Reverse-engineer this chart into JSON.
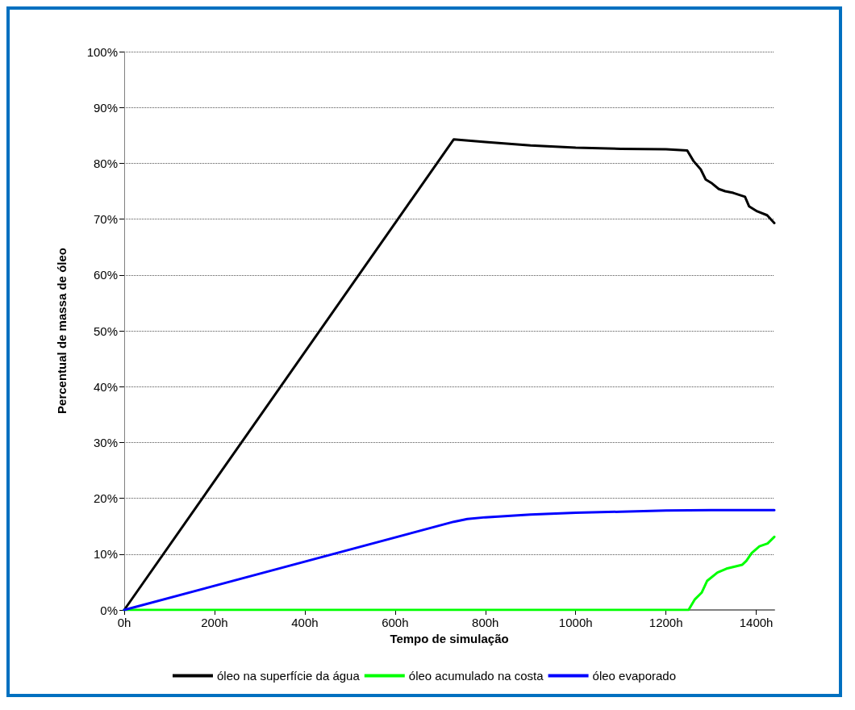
{
  "chart_data": {
    "type": "line",
    "xlabel": "Tempo de simulação",
    "ylabel": "Percentual de massa de óleo",
    "xlim": [
      0,
      1440
    ],
    "xticks": [
      {
        "value": 0,
        "label": "0h"
      },
      {
        "value": 200,
        "label": "200h"
      },
      {
        "value": 400,
        "label": "400h"
      },
      {
        "value": 600,
        "label": "600h"
      },
      {
        "value": 800,
        "label": "800h"
      },
      {
        "value": 1000,
        "label": "1000h"
      },
      {
        "value": 1200,
        "label": "1200h"
      },
      {
        "value": 1400,
        "label": "1400h"
      }
    ],
    "ylim": [
      0,
      100
    ],
    "yticks": [
      {
        "value": 0,
        "label": "0%"
      },
      {
        "value": 10,
        "label": "10%"
      },
      {
        "value": 20,
        "label": "20%"
      },
      {
        "value": 30,
        "label": "30%"
      },
      {
        "value": 40,
        "label": "40%"
      },
      {
        "value": 50,
        "label": "50%"
      },
      {
        "value": 60,
        "label": "60%"
      },
      {
        "value": 70,
        "label": "70%"
      },
      {
        "value": 80,
        "label": "80%"
      },
      {
        "value": 90,
        "label": "90%"
      },
      {
        "value": 100,
        "label": "100%"
      }
    ],
    "grid": "y",
    "legend": "bottom",
    "marker": "none",
    "line_style": "solid",
    "series": [
      {
        "name": "óleo na superfície da água",
        "color": "#000000",
        "x": [
          0,
          730,
          800,
          900,
          1000,
          1100,
          1200,
          1247,
          1261,
          1277,
          1288,
          1302,
          1317,
          1331,
          1349,
          1375,
          1384,
          1402,
          1424,
          1440
        ],
        "values": [
          0,
          84.3,
          83.8,
          83.2,
          82.8,
          82.6,
          82.5,
          82.3,
          80.4,
          78.9,
          77.1,
          76.4,
          75.4,
          75.0,
          74.7,
          74.0,
          72.3,
          71.4,
          70.7,
          69.3
        ]
      },
      {
        "name": "óleo acumulado na costa",
        "color": "#00ff00",
        "x": [
          0,
          1250,
          1264,
          1279,
          1291,
          1314,
          1334,
          1369,
          1378,
          1390,
          1407,
          1425,
          1440
        ],
        "values": [
          0,
          0,
          1.9,
          3.1,
          5.2,
          6.7,
          7.4,
          8.1,
          8.8,
          10.2,
          11.4,
          11.9,
          13.1
        ]
      },
      {
        "name": "óleo evaporado",
        "color": "#0000ff",
        "x": [
          0,
          730,
          760,
          800,
          900,
          1000,
          1100,
          1200,
          1300,
          1440
        ],
        "values": [
          0,
          15.8,
          16.3,
          16.6,
          17.1,
          17.4,
          17.6,
          17.8,
          17.9,
          17.9
        ]
      }
    ]
  }
}
